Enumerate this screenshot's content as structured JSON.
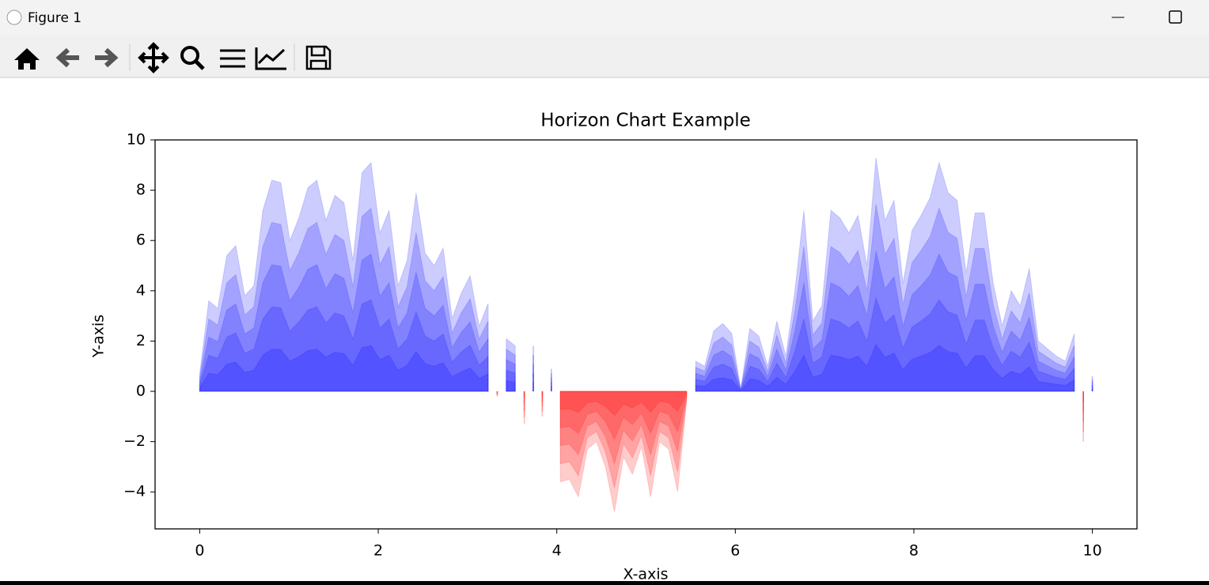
{
  "window_title": "Figure 1",
  "chart_data": {
    "type": "horizon",
    "title": "Horizon Chart Example",
    "x_label": "X-axis",
    "y_label": "Y-axis",
    "x": [
      0,
      0.101,
      0.202,
      0.303,
      0.404,
      0.505,
      0.606,
      0.707,
      0.808,
      0.909,
      1.01,
      1.111,
      1.212,
      1.313,
      1.414,
      1.515,
      1.616,
      1.717,
      1.818,
      1.919,
      2.02,
      2.121,
      2.222,
      2.323,
      2.424,
      2.525,
      2.626,
      2.727,
      2.828,
      2.929,
      3.03,
      3.131,
      3.232,
      3.333,
      3.434,
      3.535,
      3.636,
      3.737,
      3.838,
      3.939,
      4.04,
      4.141,
      4.242,
      4.343,
      4.444,
      4.545,
      4.646,
      4.747,
      4.848,
      4.949,
      5.051,
      5.152,
      5.253,
      5.354,
      5.455,
      5.556,
      5.657,
      5.758,
      5.859,
      5.96,
      6.061,
      6.162,
      6.263,
      6.364,
      6.465,
      6.566,
      6.667,
      6.768,
      6.869,
      6.97,
      7.071,
      7.172,
      7.273,
      7.374,
      7.475,
      7.576,
      7.677,
      7.778,
      7.879,
      7.98,
      8.081,
      8.182,
      8.283,
      8.384,
      8.485,
      8.586,
      8.687,
      8.788,
      8.889,
      8.99,
      9.091,
      9.192,
      9.293,
      9.394,
      9.495,
      9.596,
      9.697,
      9.798,
      9.899,
      10
    ],
    "values": [
      0.7,
      3.6,
      3.3,
      5.4,
      5.8,
      3.8,
      4.2,
      7.2,
      8.4,
      8.3,
      6.0,
      6.9,
      8.1,
      8.4,
      6.8,
      7.8,
      7.5,
      5.2,
      8.7,
      9.1,
      6.3,
      7.2,
      4.2,
      5.2,
      7.9,
      5.5,
      5.0,
      5.7,
      2.9,
      3.9,
      4.6,
      2.6,
      3.5,
      -0.2,
      2.1,
      1.8,
      -1.3,
      1.8,
      -1.0,
      0.9,
      -3.6,
      -3.5,
      -4.2,
      -2.3,
      -2.0,
      -3.0,
      -4.8,
      -2.6,
      -3.3,
      -2.2,
      -4.2,
      -2.0,
      -2.3,
      -4.0,
      -0.4,
      1.2,
      1.0,
      2.4,
      2.7,
      2.3,
      0.1,
      2.5,
      2.2,
      1.0,
      2.8,
      1.4,
      4.0,
      7.2,
      2.8,
      3.4,
      7.2,
      6.9,
      6.3,
      7.0,
      5.0,
      9.3,
      6.8,
      7.6,
      4.3,
      6.4,
      7.0,
      7.7,
      9.1,
      7.9,
      7.6,
      4.7,
      7.1,
      7.1,
      4.3,
      2.6,
      4.0,
      3.4,
      4.9,
      2.0,
      1.7,
      1.4,
      1.2,
      2.3,
      -2.0,
      0.6
    ],
    "bands": 5,
    "positive_color": "blue",
    "negative_color": "red",
    "xlim": [
      -0.5,
      10.5
    ],
    "ylim": [
      -5.47,
      10
    ],
    "xticks": [
      0,
      2,
      4,
      6,
      8,
      10
    ],
    "yticks": [
      {
        "value": -4,
        "label": "−4"
      },
      {
        "value": -2,
        "label": "−2"
      },
      0,
      2,
      4,
      6,
      8,
      10
    ]
  }
}
